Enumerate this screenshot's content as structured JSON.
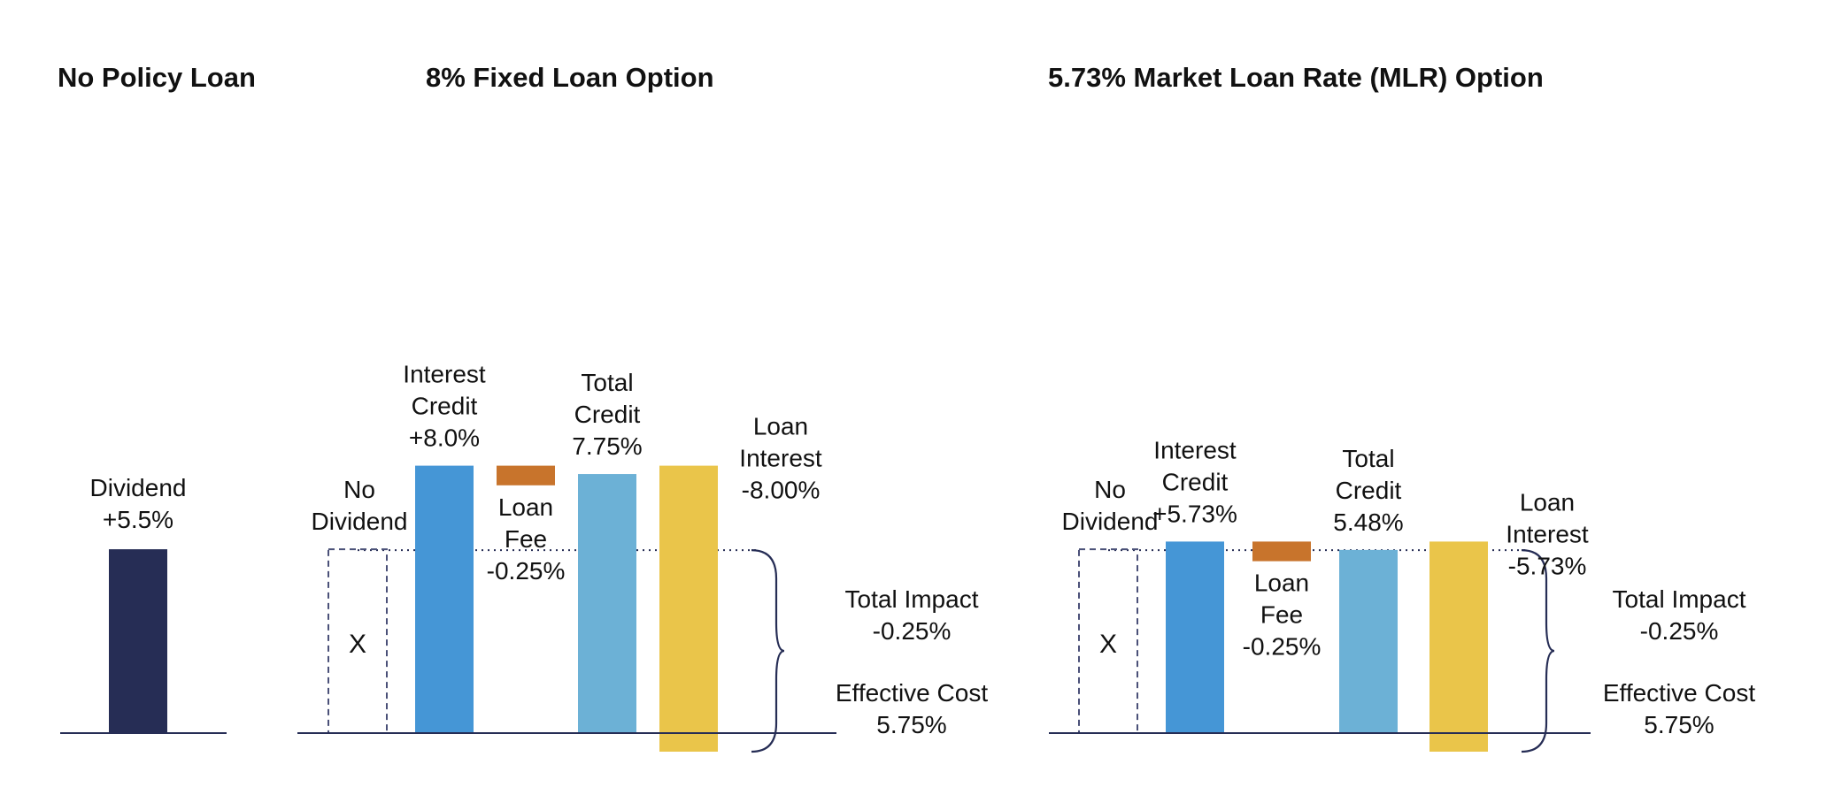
{
  "chart_data": [
    {
      "type": "bar",
      "title": "No Policy Loan",
      "categories": [
        "Dividend"
      ],
      "values": [
        5.5
      ],
      "bar_labels": [
        [
          "Dividend",
          "+5.5%"
        ]
      ],
      "ylabel": "",
      "xlabel": ""
    },
    {
      "type": "bar",
      "title": "8% Fixed Loan Option",
      "categories": [
        "No Dividend",
        "Interest Credit",
        "Loan Fee",
        "Total Credit",
        "Loan Interest"
      ],
      "values": [
        0,
        8.0,
        -0.25,
        7.75,
        -8.0
      ],
      "bar_labels": [
        [
          "No",
          "Dividend"
        ],
        [
          "Interest",
          "Credit",
          "+8.0%"
        ],
        [
          "Loan",
          "Fee",
          "-0.25%"
        ],
        [
          "Total",
          "Credit",
          "7.75%"
        ],
        [
          "Loan",
          "Interest",
          "-8.00%"
        ]
      ],
      "excluded_marker": "X",
      "total_impact": [
        "Total Impact",
        "-0.25%"
      ],
      "effective_cost": [
        "Effective Cost",
        "5.75%"
      ]
    },
    {
      "type": "bar",
      "title": "5.73% Market Loan Rate (MLR) Option",
      "categories": [
        "No Dividend",
        "Interest Credit",
        "Loan Fee",
        "Total Credit",
        "Loan Interest"
      ],
      "values": [
        0,
        5.73,
        -0.25,
        5.48,
        -5.73
      ],
      "bar_labels": [
        [
          "No",
          "Dividend"
        ],
        [
          "Interest",
          "Credit",
          "+5.73%"
        ],
        [
          "Loan",
          "Fee",
          "-0.25%"
        ],
        [
          "Total",
          "Credit",
          "5.48%"
        ],
        [
          "Loan",
          "Interest",
          "-5.73%"
        ]
      ],
      "excluded_marker": "X",
      "total_impact": [
        "Total Impact",
        "-0.25%"
      ],
      "effective_cost": [
        "Effective Cost",
        "5.75%"
      ]
    }
  ],
  "colors": {
    "dividend": "#262d55",
    "interest_credit": "#4596d6",
    "loan_fee": "#c8742c",
    "total_credit": "#6cb1d6",
    "loan_interest": "#eac54a",
    "axis": "#262d55",
    "dashed_box": "#4a5078"
  }
}
